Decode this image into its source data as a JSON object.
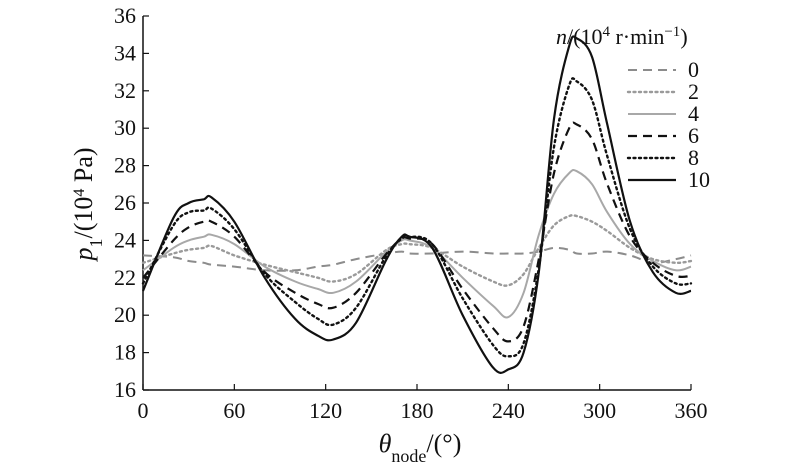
{
  "chart_data": {
    "type": "line",
    "xlabel": {
      "main": "θ",
      "sub": "node",
      "tail": "/(°)"
    },
    "ylabel": {
      "main": "p",
      "sub": "1",
      "tail": "/(10",
      "sup": "4",
      "unit": " Pa)"
    },
    "legend_title": {
      "var": "n",
      "pre": "/(10",
      "sup1": "4",
      "mid": " r·min",
      "sup2": "−1",
      "post": ")"
    },
    "legend_position": "top-right",
    "xlim": [
      0,
      360
    ],
    "ylim": [
      16,
      36
    ],
    "x_ticks": [
      "0",
      "60",
      "120",
      "180",
      "240",
      "300",
      "360"
    ],
    "y_ticks": [
      "16",
      "18",
      "20",
      "22",
      "24",
      "26",
      "28",
      "30",
      "32",
      "34",
      "36"
    ],
    "grid": false,
    "x": [
      0,
      20,
      30,
      40,
      45,
      60,
      80,
      100,
      115,
      125,
      140,
      160,
      170,
      175,
      190,
      210,
      230,
      240,
      250,
      260,
      270,
      280,
      285,
      295,
      305,
      320,
      335,
      350,
      360
    ],
    "series": [
      {
        "name": "0",
        "style": "dash",
        "color": "#8c8c8c",
        "values": [
          23.2,
          23.1,
          22.9,
          22.8,
          22.7,
          22.6,
          22.4,
          22.4,
          22.6,
          22.7,
          23.0,
          23.3,
          23.4,
          23.3,
          23.3,
          23.4,
          23.3,
          23.3,
          23.3,
          23.4,
          23.6,
          23.5,
          23.3,
          23.3,
          23.4,
          23.2,
          22.8,
          23.0,
          23.2
        ]
      },
      {
        "name": "2",
        "style": "dot",
        "color": "#9a9a9a",
        "values": [
          22.8,
          23.3,
          23.5,
          23.6,
          23.7,
          23.2,
          22.7,
          22.3,
          22.0,
          21.8,
          22.2,
          23.5,
          23.8,
          23.8,
          23.6,
          22.6,
          21.8,
          21.6,
          22.2,
          23.6,
          24.8,
          25.3,
          25.3,
          25.0,
          24.5,
          23.6,
          23.0,
          22.8,
          22.9
        ]
      },
      {
        "name": "4",
        "style": "solid",
        "color": "#a8a8a8",
        "values": [
          22.4,
          23.6,
          24.0,
          24.2,
          24.3,
          23.8,
          22.6,
          21.8,
          21.4,
          21.2,
          21.8,
          23.4,
          24.0,
          24.0,
          23.6,
          22.0,
          20.5,
          19.9,
          21.2,
          24.3,
          26.5,
          27.6,
          27.7,
          27.0,
          25.5,
          23.8,
          22.9,
          22.4,
          22.6
        ]
      },
      {
        "name": "6",
        "style": "dash",
        "color": "#111111",
        "values": [
          22.0,
          24.0,
          24.7,
          25.0,
          25.0,
          24.2,
          22.3,
          21.2,
          20.6,
          20.4,
          21.2,
          23.3,
          24.1,
          24.1,
          23.8,
          21.4,
          19.3,
          18.6,
          19.4,
          23.0,
          27.6,
          30.0,
          30.2,
          29.4,
          27.0,
          24.2,
          22.8,
          22.1,
          22.1
        ]
      },
      {
        "name": "8",
        "style": "dot",
        "color": "#111111",
        "values": [
          21.7,
          24.8,
          25.5,
          25.6,
          25.7,
          24.6,
          22.2,
          20.7,
          19.8,
          19.5,
          20.4,
          23.2,
          24.1,
          24.2,
          23.8,
          20.9,
          18.4,
          17.8,
          18.5,
          22.5,
          29.0,
          32.3,
          32.5,
          31.5,
          28.5,
          24.6,
          22.6,
          21.7,
          21.7
        ]
      },
      {
        "name": "10",
        "style": "solid",
        "color": "#111111",
        "values": [
          21.3,
          25.2,
          26.0,
          26.2,
          26.3,
          25.0,
          22.0,
          19.8,
          18.9,
          18.7,
          19.6,
          23.0,
          24.2,
          24.2,
          23.6,
          20.0,
          17.2,
          17.1,
          18.0,
          22.3,
          30.5,
          34.4,
          34.8,
          33.8,
          30.2,
          25.0,
          22.3,
          21.2,
          21.3
        ]
      }
    ]
  }
}
